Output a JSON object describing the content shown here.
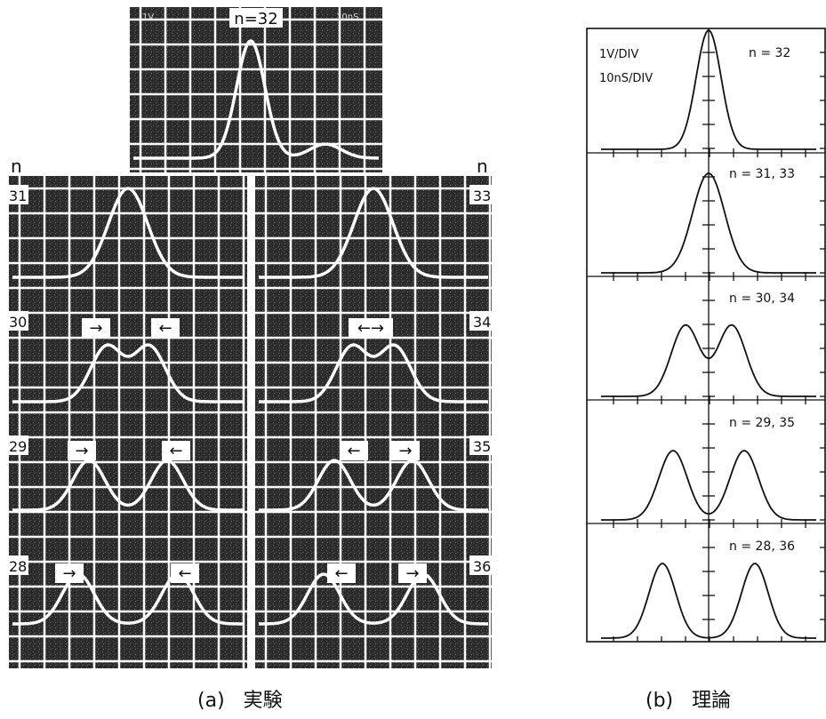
{
  "panel_a": {
    "top_label": "n=32",
    "top_tag_left": "1V",
    "top_tag_right": "10nS",
    "axis_left": "n",
    "axis_right": "n",
    "left_labels": [
      "31",
      "30",
      "29",
      "28"
    ],
    "right_labels": [
      "33",
      "34",
      "35",
      "36"
    ],
    "caption_letter": "(a)",
    "caption_text": "実験"
  },
  "panel_b": {
    "scale_v": "1V/DIV",
    "scale_t": "10nS/DIV",
    "labels": [
      "n = 32",
      "n = 31, 33",
      "n = 30, 34",
      "n = 29, 35",
      "n = 28, 36"
    ],
    "caption_letter": "(b)",
    "caption_text": "理論"
  },
  "colors": {
    "screen": "#2b2b2b",
    "trace": "#ffffff",
    "ink": "#111111"
  }
}
